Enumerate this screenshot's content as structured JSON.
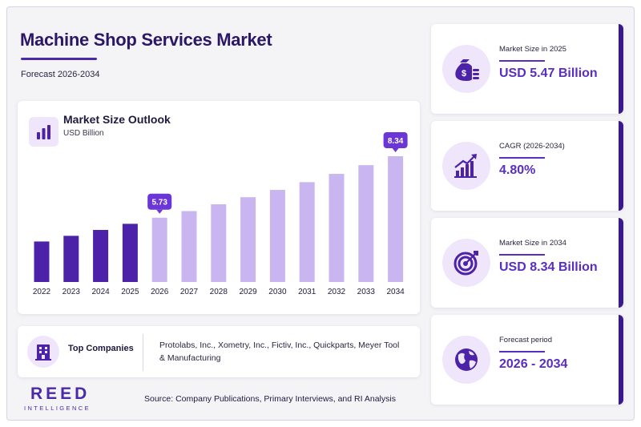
{
  "header": {
    "title": "Machine Shop Services Market",
    "subtitle": "Forecast 2026-2034"
  },
  "chart_card": {
    "title": "Market Size Outlook",
    "unit": "USD Billion"
  },
  "chart_data": {
    "type": "bar",
    "title": "Market Size Outlook",
    "ylabel": "USD Billion",
    "categories": [
      "2022",
      "2023",
      "2024",
      "2025",
      "2026",
      "2027",
      "2028",
      "2029",
      "2030",
      "2031",
      "2032",
      "2033",
      "2034"
    ],
    "values": [
      4.72,
      4.96,
      5.21,
      5.47,
      5.73,
      6.01,
      6.3,
      6.6,
      6.91,
      7.24,
      7.59,
      7.96,
      8.34
    ],
    "data_labels": {
      "2026": "5.73",
      "2034": "8.34"
    },
    "historical_color": "#4b22a8",
    "forecast_color": "#c9b6f0",
    "label_color": "#6a36d6",
    "ylim": [
      0,
      9
    ],
    "grid": false,
    "legend": "none"
  },
  "top_companies": {
    "label": "Top Companies",
    "text": "Protolabs, Inc., Xometry, Inc., Fictiv, Inc., Quickparts, Meyer Tool & Manufacturing",
    "icon": "building-icon"
  },
  "stats": [
    {
      "label": "Market Size in 2025",
      "value": "USD 5.47 Billion",
      "icon": "money-bag-icon"
    },
    {
      "label": "CAGR (2026-2034)",
      "value": "4.80%",
      "icon": "growth-chart-icon"
    },
    {
      "label": "Market Size in 2034",
      "value": "USD 8.34 Billion",
      "icon": "target-icon"
    },
    {
      "label": "Forecast period",
      "value": "2026 - 2034",
      "icon": "globe-icon"
    }
  ],
  "logo": {
    "main": "REED",
    "sub": "INTELLIGENCE"
  },
  "source": "Source: Company Publications, Primary Interviews, and RI Analysis",
  "colors": {
    "accent": "#5a2ec0",
    "dark": "#2b1766",
    "light": "#f0e6fb"
  }
}
